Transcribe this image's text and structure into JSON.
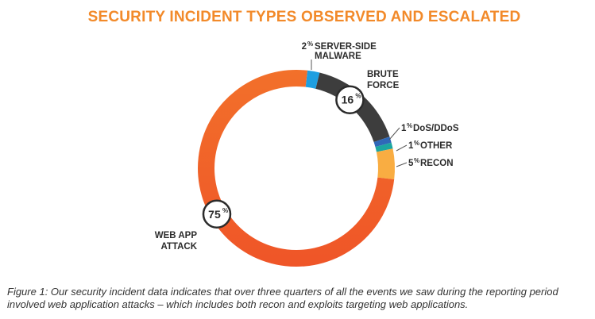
{
  "colors": {
    "title": "#F28A2A",
    "leader": "#555555",
    "badge_fill": "#ffffff",
    "badge_stroke": "#2b2b2b"
  },
  "chart_data": {
    "type": "pie",
    "donut": true,
    "title": "SECURITY INCIDENT TYPES OBSERVED AND ESCALATED",
    "legend": "none",
    "slices": [
      {
        "label": "SERVER-SIDE MALWARE",
        "value": 2,
        "display": "2",
        "color": "#1E9FE0",
        "lines": [
          "SERVER-SIDE",
          "MALWARE"
        ]
      },
      {
        "label": "BRUTE FORCE",
        "value": 16,
        "display": "16",
        "color": "#3D3D3D",
        "lines": [
          "BRUTE",
          "FORCE"
        ],
        "badge": true
      },
      {
        "label": "DoS/DDoS",
        "value": 1,
        "display": "1",
        "color": "#2F68B8",
        "lines": [
          "DoS/DDoS"
        ]
      },
      {
        "label": "OTHER",
        "value": 1,
        "display": "1",
        "color": "#1CA6A0",
        "lines": [
          "OTHER"
        ]
      },
      {
        "label": "RECON",
        "value": 5,
        "display": "5",
        "color": "#F9AD42",
        "lines": [
          "RECON"
        ]
      },
      {
        "label": "WEB APP ATTACK",
        "value": 75,
        "display": "75",
        "color": "#F2702A",
        "lines": [
          "WEB APP",
          "ATTACK"
        ],
        "badge": true,
        "gradient_end": "#EF5528"
      }
    ],
    "percent_suffix": "%"
  },
  "caption": "Figure 1: Our security incident data indicates that over three quarters of all the events we saw during the reporting period involved web application attacks – which includes both recon and exploits targeting web applications."
}
